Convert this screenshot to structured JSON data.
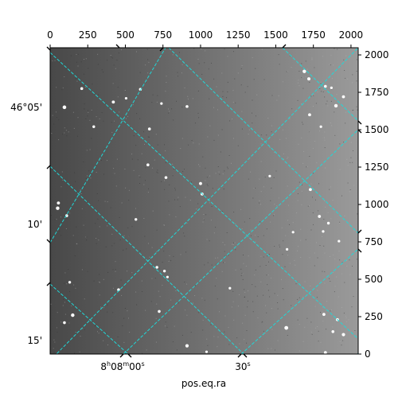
{
  "chart_data": {
    "type": "scatter",
    "title": "",
    "xlabel": "pos.eq.ra",
    "ylabel": "",
    "image_pixel_axes": {
      "x_range": [
        0,
        2048
      ],
      "y_range": [
        0,
        2048
      ],
      "x_ticks": [
        0,
        250,
        500,
        750,
        1000,
        1250,
        1500,
        1750,
        2000
      ],
      "y_ticks": [
        0,
        250,
        500,
        750,
        1000,
        1250,
        1500,
        1750,
        2000
      ]
    },
    "world_axes": {
      "bottom_ticks": [
        {
          "label_prefix": "8",
          "label_sup1": "h",
          "label_mid": "08",
          "label_sup2": "m",
          "label_end": "00",
          "label_sup3": "s"
        },
        {
          "label_prefix": "",
          "label_sup1": "",
          "label_mid": "",
          "label_sup2": "",
          "label_end": "30",
          "label_sup3": "s"
        }
      ],
      "left_ticks": [
        "46°05'",
        "10'",
        "15'"
      ]
    },
    "grid": true,
    "grid_color": "#20d8d8",
    "colors": {
      "frame": "#000000",
      "sky_light": "#9a9a9a",
      "sky_dark": "#484848",
      "star": "#ffffff"
    },
    "stars": [
      {
        "x": 95,
        "y": 1650,
        "r": 1.7
      },
      {
        "x": 210,
        "y": 1775,
        "r": 1.2
      },
      {
        "x": 420,
        "y": 1685,
        "r": 1.3
      },
      {
        "x": 600,
        "y": 1770,
        "r": 1.2
      },
      {
        "x": 505,
        "y": 1710,
        "r": 1.0
      },
      {
        "x": 740,
        "y": 1675,
        "r": 1.0
      },
      {
        "x": 910,
        "y": 1655,
        "r": 1.2
      },
      {
        "x": 1690,
        "y": 1890,
        "r": 1.6
      },
      {
        "x": 1720,
        "y": 1840,
        "r": 1.4
      },
      {
        "x": 1830,
        "y": 1790,
        "r": 1.2
      },
      {
        "x": 1870,
        "y": 1780,
        "r": 1.0
      },
      {
        "x": 1950,
        "y": 1720,
        "r": 1.3
      },
      {
        "x": 1900,
        "y": 1660,
        "r": 1.6
      },
      {
        "x": 1725,
        "y": 1600,
        "r": 1.3
      },
      {
        "x": 1800,
        "y": 1520,
        "r": 1.0
      },
      {
        "x": 290,
        "y": 1520,
        "r": 1.1
      },
      {
        "x": 660,
        "y": 1505,
        "r": 1.2
      },
      {
        "x": 650,
        "y": 1265,
        "r": 1.2
      },
      {
        "x": 770,
        "y": 1180,
        "r": 1.2
      },
      {
        "x": 1000,
        "y": 1140,
        "r": 1.3
      },
      {
        "x": 1010,
        "y": 1070,
        "r": 1.3
      },
      {
        "x": 1460,
        "y": 1190,
        "r": 1.0
      },
      {
        "x": 1730,
        "y": 1100,
        "r": 1.3
      },
      {
        "x": 55,
        "y": 1010,
        "r": 1.3
      },
      {
        "x": 50,
        "y": 975,
        "r": 1.6
      },
      {
        "x": 110,
        "y": 925,
        "r": 1.2
      },
      {
        "x": 570,
        "y": 900,
        "r": 1.1
      },
      {
        "x": 1790,
        "y": 920,
        "r": 1.3
      },
      {
        "x": 1850,
        "y": 875,
        "r": 1.1
      },
      {
        "x": 1815,
        "y": 820,
        "r": 1.0
      },
      {
        "x": 1615,
        "y": 815,
        "r": 1.0
      },
      {
        "x": 1920,
        "y": 755,
        "r": 1.0
      },
      {
        "x": 1575,
        "y": 700,
        "r": 1.0
      },
      {
        "x": 710,
        "y": 580,
        "r": 1.1
      },
      {
        "x": 760,
        "y": 555,
        "r": 1.1
      },
      {
        "x": 780,
        "y": 515,
        "r": 1.0
      },
      {
        "x": 455,
        "y": 430,
        "r": 1.2
      },
      {
        "x": 130,
        "y": 480,
        "r": 1.1
      },
      {
        "x": 1195,
        "y": 440,
        "r": 1.0
      },
      {
        "x": 725,
        "y": 285,
        "r": 1.2
      },
      {
        "x": 150,
        "y": 260,
        "r": 1.6
      },
      {
        "x": 95,
        "y": 210,
        "r": 1.2
      },
      {
        "x": 1570,
        "y": 175,
        "r": 1.8
      },
      {
        "x": 1820,
        "y": 265,
        "r": 1.3
      },
      {
        "x": 1910,
        "y": 230,
        "r": 1.3
      },
      {
        "x": 1880,
        "y": 150,
        "r": 1.2
      },
      {
        "x": 1950,
        "y": 130,
        "r": 1.5
      },
      {
        "x": 910,
        "y": 55,
        "r": 1.5
      },
      {
        "x": 1830,
        "y": 10,
        "r": 1.3
      },
      {
        "x": 1040,
        "y": 15,
        "r": 1.0
      }
    ]
  }
}
